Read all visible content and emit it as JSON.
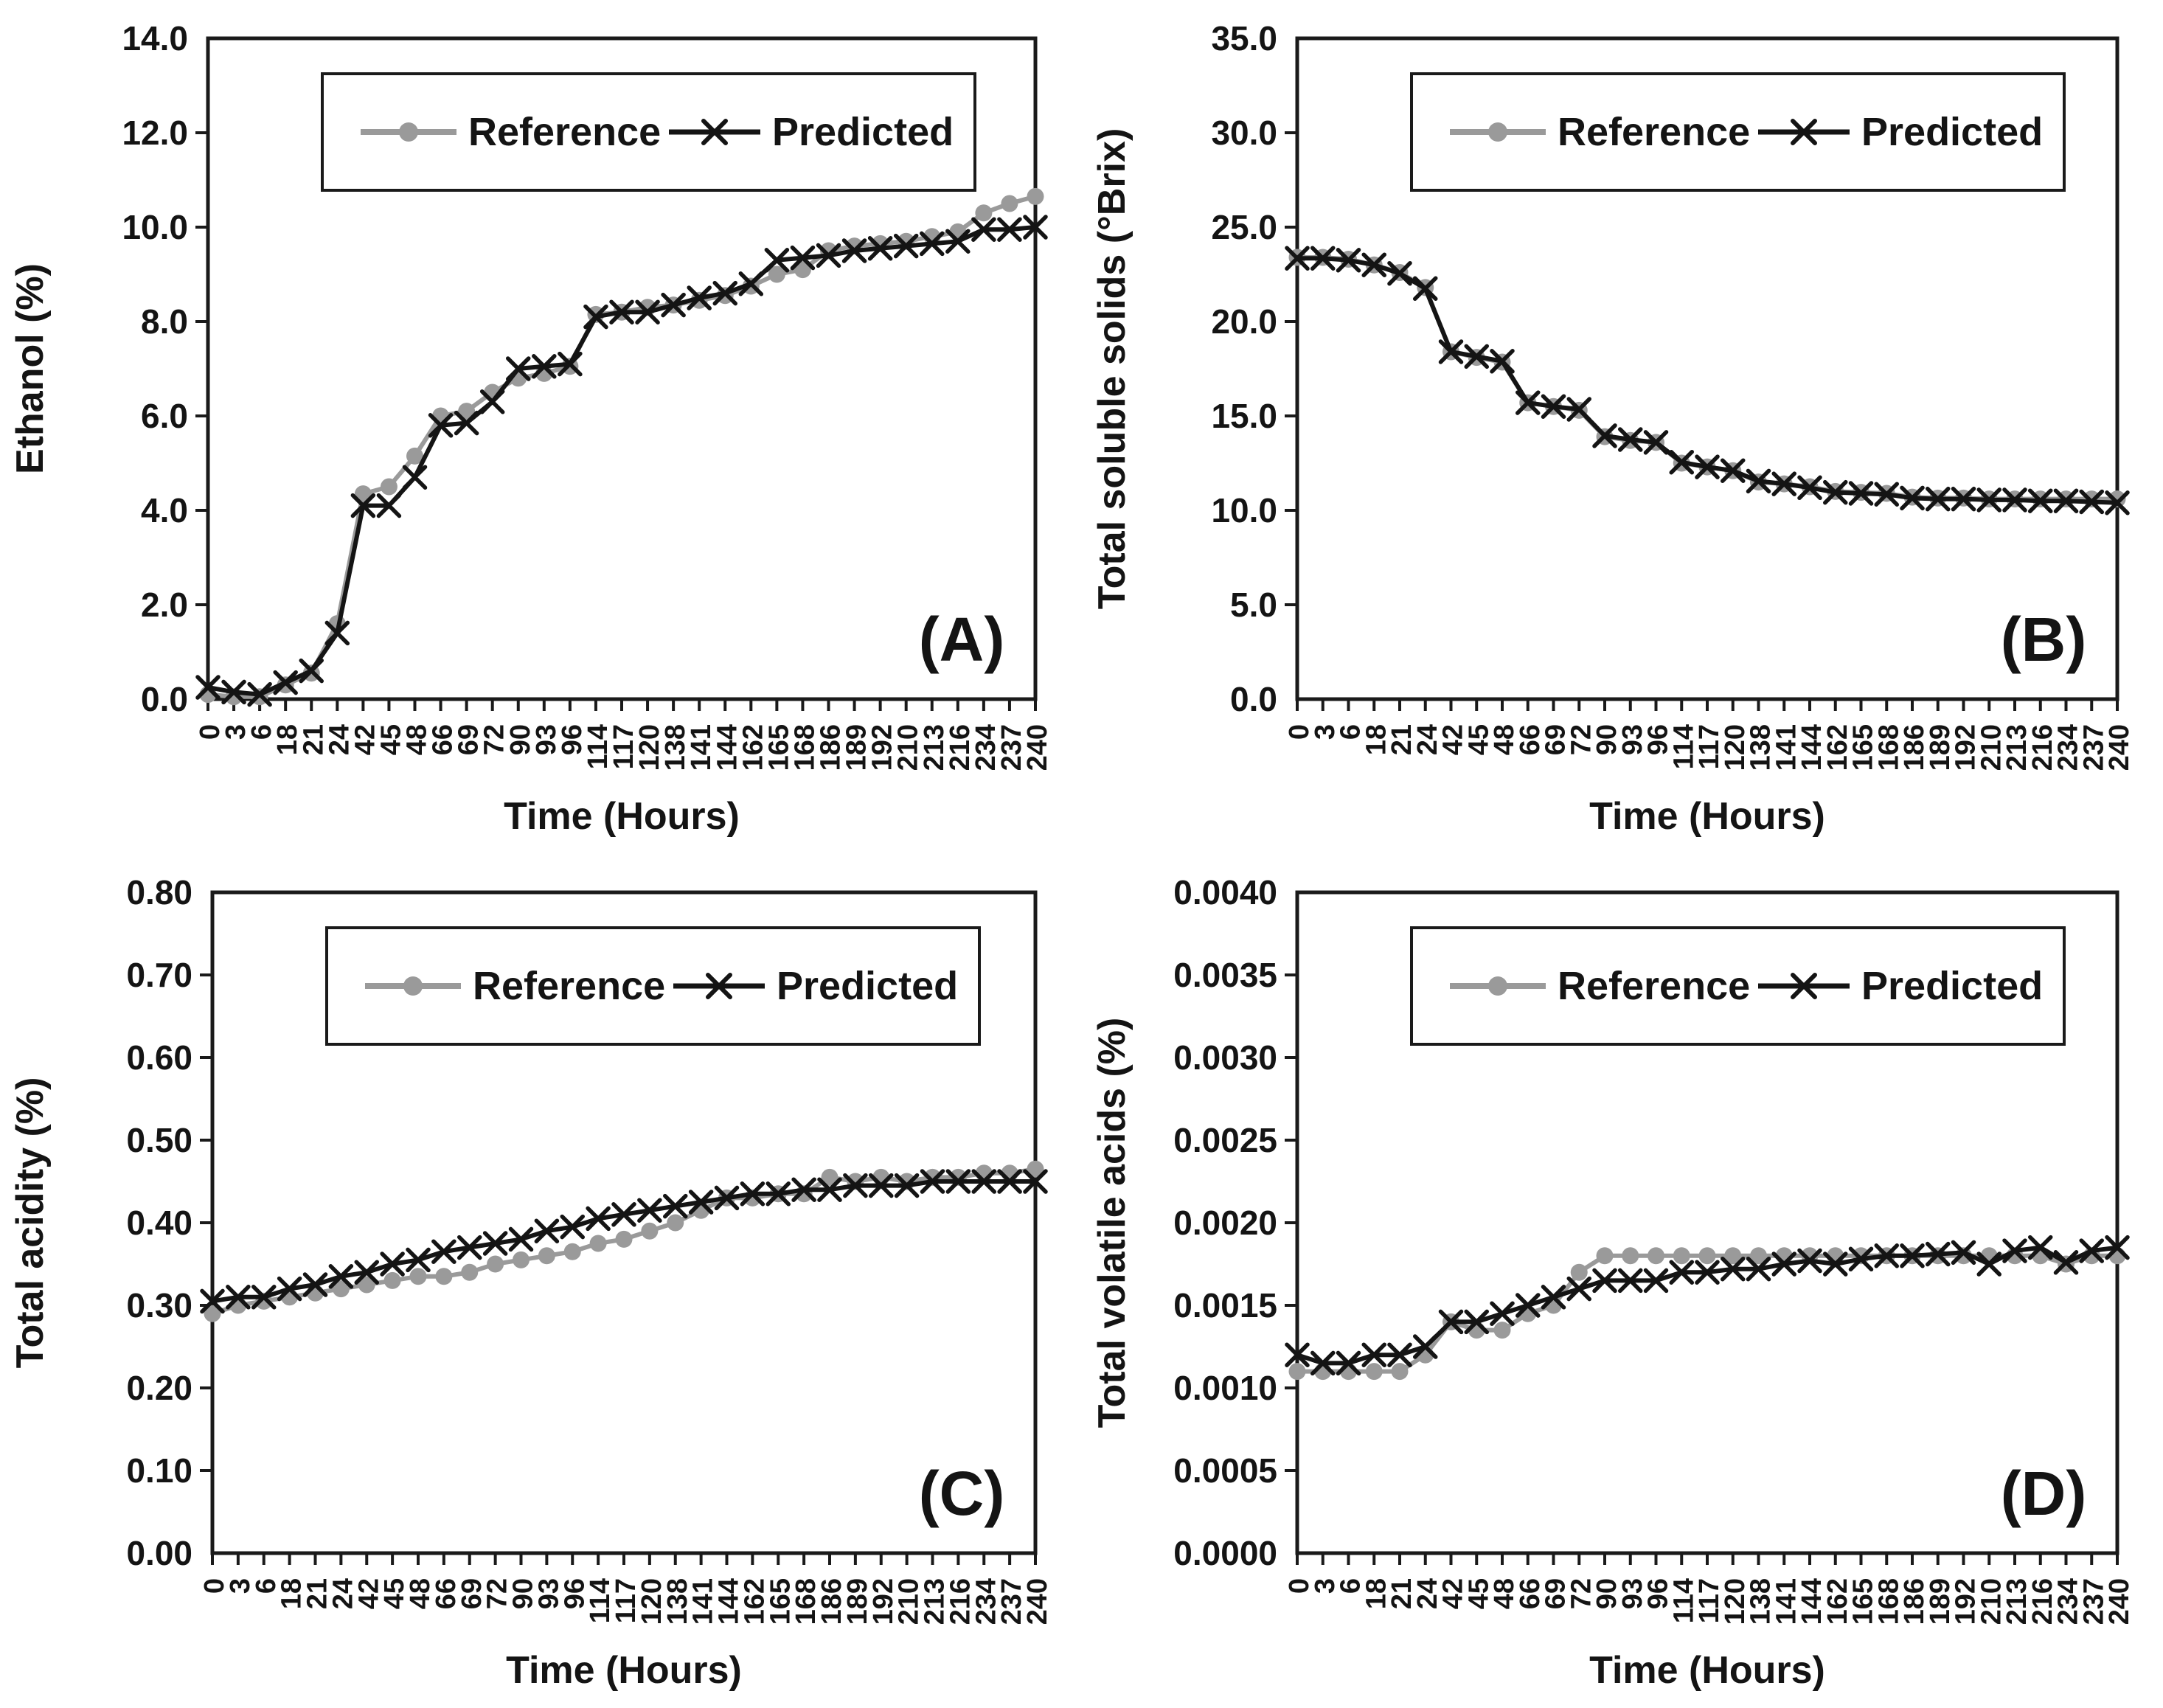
{
  "figure": {
    "background": "#ffffff",
    "frame_color": "#1a1a1a",
    "xlabel": "Time (Hours)",
    "legend": {
      "position": "top-center-inside",
      "items": [
        {
          "label": "Reference",
          "marker": "circle",
          "color": "#9a9a9a"
        },
        {
          "label": "Predicted",
          "marker": "x",
          "color": "#141414"
        }
      ]
    }
  },
  "chart_data": [
    {
      "type": "line",
      "panel": "A",
      "panel_label": "(A)",
      "title": "",
      "ylabel": "Ethanol (%)",
      "xlabel": "Time (Hours)",
      "ylim": [
        0,
        14
      ],
      "ytick_step": 2,
      "ytick_decimals": 1,
      "grid": false,
      "categories": [
        "0",
        "3",
        "6",
        "18",
        "21",
        "24",
        "42",
        "45",
        "48",
        "66",
        "69",
        "72",
        "90",
        "93",
        "96",
        "114",
        "117",
        "120",
        "138",
        "141",
        "144",
        "162",
        "165",
        "168",
        "186",
        "189",
        "192",
        "210",
        "213",
        "216",
        "234",
        "237",
        "240"
      ],
      "series": [
        {
          "name": "Reference",
          "marker": "circle",
          "color": "#9a9a9a",
          "values": [
            0.1,
            0.05,
            0.05,
            0.3,
            0.55,
            1.6,
            4.35,
            4.5,
            5.15,
            6.0,
            6.1,
            6.5,
            6.8,
            6.9,
            7.05,
            8.15,
            8.2,
            8.3,
            8.35,
            8.45,
            8.55,
            8.75,
            9.0,
            9.1,
            9.5,
            9.6,
            9.65,
            9.7,
            9.8,
            9.9,
            10.3,
            10.5,
            10.65
          ]
        },
        {
          "name": "Predicted",
          "marker": "x",
          "color": "#141414",
          "values": [
            0.25,
            0.15,
            0.1,
            0.35,
            0.6,
            1.4,
            4.1,
            4.1,
            4.7,
            5.8,
            5.85,
            6.3,
            7.0,
            7.05,
            7.1,
            8.1,
            8.2,
            8.2,
            8.35,
            8.5,
            8.6,
            8.8,
            9.3,
            9.35,
            9.4,
            9.5,
            9.55,
            9.6,
            9.65,
            9.7,
            9.95,
            9.95,
            10.0
          ]
        }
      ]
    },
    {
      "type": "line",
      "panel": "B",
      "panel_label": "(B)",
      "title": "",
      "ylabel": "Total soluble solids (°Brix)",
      "xlabel": "Time (Hours)",
      "ylim": [
        0,
        35
      ],
      "ytick_step": 5,
      "ytick_decimals": 1,
      "grid": false,
      "categories": [
        "0",
        "3",
        "6",
        "18",
        "21",
        "24",
        "42",
        "45",
        "48",
        "66",
        "69",
        "72",
        "90",
        "93",
        "96",
        "114",
        "117",
        "120",
        "138",
        "141",
        "144",
        "162",
        "165",
        "168",
        "186",
        "189",
        "192",
        "210",
        "213",
        "216",
        "234",
        "237",
        "240"
      ],
      "series": [
        {
          "name": "Reference",
          "marker": "circle",
          "color": "#9a9a9a",
          "values": [
            23.4,
            23.4,
            23.3,
            23.0,
            22.6,
            21.8,
            18.4,
            18.1,
            17.85,
            15.7,
            15.5,
            15.3,
            13.9,
            13.7,
            13.6,
            12.5,
            12.3,
            12.1,
            11.5,
            11.4,
            11.25,
            11.0,
            10.95,
            10.9,
            10.7,
            10.65,
            10.65,
            10.6,
            10.6,
            10.6,
            10.6,
            10.6,
            10.6
          ]
        },
        {
          "name": "Predicted",
          "marker": "x",
          "color": "#141414",
          "values": [
            23.35,
            23.35,
            23.25,
            23.0,
            22.55,
            21.75,
            18.4,
            18.15,
            17.9,
            15.7,
            15.5,
            15.35,
            13.95,
            13.75,
            13.6,
            12.55,
            12.3,
            12.1,
            11.55,
            11.4,
            11.2,
            10.95,
            10.9,
            10.85,
            10.65,
            10.6,
            10.6,
            10.55,
            10.55,
            10.5,
            10.5,
            10.45,
            10.4
          ]
        }
      ]
    },
    {
      "type": "line",
      "panel": "C",
      "panel_label": "(C)",
      "title": "",
      "ylabel": "Total acidity (%)",
      "xlabel": "Time (Hours)",
      "ylim": [
        0,
        0.8
      ],
      "ytick_step": 0.1,
      "ytick_decimals": 2,
      "grid": false,
      "categories": [
        "0",
        "3",
        "6",
        "18",
        "21",
        "24",
        "42",
        "45",
        "48",
        "66",
        "69",
        "72",
        "90",
        "93",
        "96",
        "114",
        "117",
        "120",
        "138",
        "141",
        "144",
        "162",
        "165",
        "168",
        "186",
        "189",
        "192",
        "210",
        "213",
        "216",
        "234",
        "237",
        "240"
      ],
      "series": [
        {
          "name": "Reference",
          "marker": "circle",
          "color": "#9a9a9a",
          "values": [
            0.29,
            0.3,
            0.305,
            0.31,
            0.315,
            0.32,
            0.325,
            0.33,
            0.335,
            0.335,
            0.34,
            0.35,
            0.355,
            0.36,
            0.365,
            0.375,
            0.38,
            0.39,
            0.4,
            0.415,
            0.43,
            0.43,
            0.435,
            0.435,
            0.455,
            0.45,
            0.455,
            0.45,
            0.455,
            0.455,
            0.46,
            0.46,
            0.465
          ]
        },
        {
          "name": "Predicted",
          "marker": "x",
          "color": "#141414",
          "values": [
            0.305,
            0.31,
            0.31,
            0.32,
            0.325,
            0.335,
            0.34,
            0.35,
            0.355,
            0.365,
            0.37,
            0.375,
            0.38,
            0.39,
            0.395,
            0.405,
            0.41,
            0.415,
            0.42,
            0.425,
            0.43,
            0.435,
            0.435,
            0.44,
            0.44,
            0.445,
            0.445,
            0.445,
            0.45,
            0.45,
            0.45,
            0.45,
            0.45
          ]
        }
      ]
    },
    {
      "type": "line",
      "panel": "D",
      "panel_label": "(D)",
      "title": "",
      "ylabel": "Total volatile acids (%)",
      "xlabel": "Time (Hours)",
      "ylim": [
        0,
        0.004
      ],
      "ytick_step": 0.0005,
      "ytick_decimals": 4,
      "grid": false,
      "categories": [
        "0",
        "3",
        "6",
        "18",
        "21",
        "24",
        "42",
        "45",
        "48",
        "66",
        "69",
        "72",
        "90",
        "93",
        "96",
        "114",
        "117",
        "120",
        "138",
        "141",
        "144",
        "162",
        "165",
        "168",
        "186",
        "189",
        "192",
        "210",
        "213",
        "216",
        "234",
        "237",
        "240"
      ],
      "series": [
        {
          "name": "Reference",
          "marker": "circle",
          "color": "#9a9a9a",
          "values": [
            0.0011,
            0.0011,
            0.0011,
            0.0011,
            0.0011,
            0.0012,
            0.0014,
            0.00135,
            0.00135,
            0.00145,
            0.0015,
            0.0017,
            0.0018,
            0.0018,
            0.0018,
            0.0018,
            0.0018,
            0.0018,
            0.0018,
            0.0018,
            0.0018,
            0.0018,
            0.0018,
            0.0018,
            0.0018,
            0.0018,
            0.0018,
            0.0018,
            0.0018,
            0.0018,
            0.00175,
            0.0018,
            0.0018
          ]
        },
        {
          "name": "Predicted",
          "marker": "x",
          "color": "#141414",
          "values": [
            0.0012,
            0.00115,
            0.00115,
            0.0012,
            0.0012,
            0.00125,
            0.0014,
            0.0014,
            0.00145,
            0.0015,
            0.00155,
            0.0016,
            0.00165,
            0.00165,
            0.00165,
            0.0017,
            0.0017,
            0.00172,
            0.00172,
            0.00175,
            0.00177,
            0.00175,
            0.00178,
            0.0018,
            0.0018,
            0.00181,
            0.00182,
            0.00175,
            0.00183,
            0.00185,
            0.00176,
            0.00183,
            0.00185
          ]
        }
      ]
    }
  ]
}
